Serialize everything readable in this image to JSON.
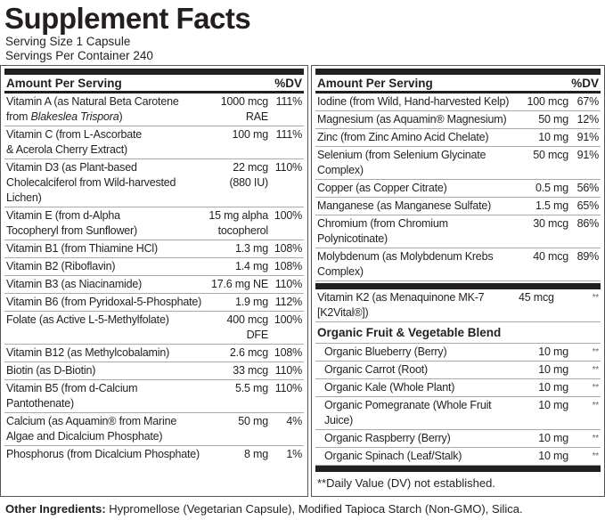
{
  "title": "Supplement Facts",
  "serving_size": "Serving Size 1 Capsule",
  "servings_per_container": "Servings Per Container 240",
  "header": {
    "amount": "Amount Per Serving",
    "dv": "%DV"
  },
  "left_rows": [
    {
      "name": "Vitamin A (as Natural Beta Carotene\n from Blakeslea Trispora)",
      "amount": "1000 mcg\nRAE",
      "dv": "111%"
    },
    {
      "name": "Vitamin C (from L-Ascorbate\n & Acerola Cherry Extract)",
      "amount": "100 mg",
      "dv": "111%"
    },
    {
      "name": "Vitamin D3 (as Plant-based\n Cholecalciferol from Wild-harvested\n Lichen)",
      "amount": "22 mcg\n(880 IU)",
      "dv": "110%"
    },
    {
      "name": "Vitamin E (from d-Alpha\n Tocopheryl from Sunflower)",
      "amount": "15 mg alpha\ntocopherol",
      "dv": "100%"
    },
    {
      "name": "Vitamin B1 (from Thiamine HCl)",
      "amount": "1.3 mg",
      "dv": "108%"
    },
    {
      "name": "Vitamin B2 (Riboflavin)",
      "amount": "1.4 mg",
      "dv": "108%"
    },
    {
      "name": "Vitamin B3 (as Niacinamide)",
      "amount": "17.6 mg NE",
      "dv": "110%"
    },
    {
      "name": "Vitamin B6 (from Pyridoxal-5-Phosphate)",
      "amount": "1.9 mg",
      "dv": "112%"
    },
    {
      "name": "Folate (as Active L-5-Methylfolate)",
      "amount": "400 mcg\nDFE",
      "dv": "100%"
    },
    {
      "name": "Vitamin B12 (as Methylcobalamin)",
      "amount": "2.6 mcg",
      "dv": "108%"
    },
    {
      "name": "Biotin (as D-Biotin)",
      "amount": "33 mcg",
      "dv": "110%"
    },
    {
      "name": "Vitamin B5 (from d-Calcium\n Pantothenate)",
      "amount": "5.5 mg",
      "dv": "110%"
    },
    {
      "name": "Calcium (as Aquamin® from Marine\n Algae and Dicalcium Phosphate)",
      "amount": "50 mg",
      "dv": "4%"
    },
    {
      "name": "Phosphorus (from Dicalcium Phosphate)",
      "amount": "8 mg",
      "dv": "1%"
    }
  ],
  "right_rows": [
    {
      "name": "Iodine (from Wild, Hand-harvested Kelp)",
      "amount": "100 mcg",
      "dv": "67%"
    },
    {
      "name": "Magnesium (as Aquamin® Magnesium)",
      "amount": "50 mg",
      "dv": "12%"
    },
    {
      "name": "Zinc (from Zinc Amino Acid Chelate)",
      "amount": "10 mg",
      "dv": "91%"
    },
    {
      "name": "Selenium (from Selenium Glycinate\n Complex)",
      "amount": "50 mcg",
      "dv": "91%"
    },
    {
      "name": "Copper (as Copper Citrate)",
      "amount": "0.5 mg",
      "dv": "56%"
    },
    {
      "name": "Manganese (as Manganese Sulfate)",
      "amount": "1.5 mg",
      "dv": "65%"
    },
    {
      "name": "Chromium (from Chromium\n Polynicotinate)",
      "amount": "30 mcg",
      "dv": "86%"
    },
    {
      "name": "Molybdenum (as Molybdenum Krebs\n Complex)",
      "amount": "40 mcg",
      "dv": "89%"
    }
  ],
  "k2": {
    "name": "Vitamin K2 (as Menaquinone MK-7\n [K2Vital®])",
    "amount": "45 mcg",
    "dv": "**"
  },
  "blend": {
    "title": "Organic Fruit & Vegetable Blend",
    "items": [
      {
        "name": "Organic Blueberry (Berry)",
        "amount": "10 mg",
        "dv": "**"
      },
      {
        "name": "Organic Carrot (Root)",
        "amount": "10 mg",
        "dv": "**"
      },
      {
        "name": "Organic Kale (Whole Plant)",
        "amount": "10 mg",
        "dv": "**"
      },
      {
        "name": "Organic Pomegranate (Whole Fruit Juice)",
        "amount": "10 mg",
        "dv": "**"
      },
      {
        "name": "Organic Raspberry (Berry)",
        "amount": "10 mg",
        "dv": "**"
      },
      {
        "name": "Organic  Spinach (Leaf/Stalk)",
        "amount": "10 mg",
        "dv": "**"
      }
    ]
  },
  "footnote": "**Daily Value (DV) not established.",
  "other": {
    "label": "Other Ingredients:",
    "text": " Hypromellose (Vegetarian Capsule), Modified Tapioca Starch (Non-GMO), Silica."
  }
}
